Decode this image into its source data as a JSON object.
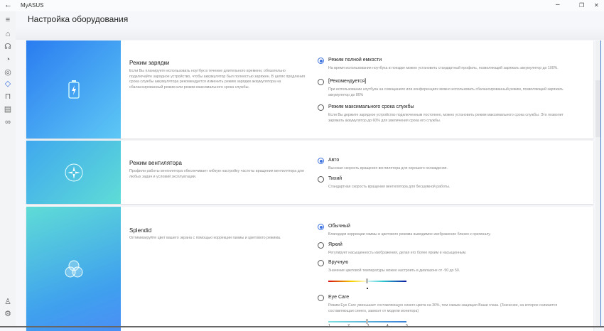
{
  "window": {
    "title": "MyASUS",
    "back_icon": "arrow-left-icon",
    "minimize": "–",
    "restore": "❐",
    "close": "✕"
  },
  "sidebar": {
    "items": [
      "menu-icon",
      "home-icon",
      "support-icon",
      "diagnostics-icon",
      "system-icon",
      "customization-icon",
      "store-icon",
      "news-icon",
      "link-icon"
    ],
    "bottom": [
      "user-icon",
      "gear-icon"
    ],
    "active": "customization-icon"
  },
  "header": {
    "title": "Настройка оборудования"
  },
  "accent": "#3a6fe0",
  "cards": [
    {
      "title": "Режим зарядки",
      "desc": "Если Вы планируете использовать ноутбук в течение длительного времени, обязательно подключайте зарядное устройство, чтобы аккумулятор был полностью заряжен. В целях продления срока службы аккумулятора рекомендуется изменить режим зарядки аккумулятора на сбалансированный режим или режим максимального срока службы.",
      "icon": "battery-charging-icon",
      "options": [
        {
          "label": "Режим полной емкости",
          "desc": "На время использования ноутбука в поездке можно установить стандартный профиль, позволяющий заряжать аккумулятор до 100%.",
          "selected": true
        },
        {
          "label": " [Рекомендуется]",
          "desc": "При использовании ноутбука на совещаниях или конференциях можно использовать сбалансированный режим, позволяющий заряжать аккумулятор до 80%",
          "selected": false
        },
        {
          "label": "Режим максимального срока службы",
          "desc": "Если Вы держите зарядное устройство подключенным постоянно, можно установить режим максимального срока службы. Это позволит заряжать аккумулятор до 60% для увеличения срока его службы.",
          "selected": false
        }
      ]
    },
    {
      "title": "Режим вентилятора",
      "desc": "Профили работы вентилятора обеспечивает гибкую настройку частоты вращения вентилятора для любых задач и условий эксплуатации.",
      "icon": "fan-icon",
      "options": [
        {
          "label": "Авто",
          "desc": "Высокая скорость вращения вентилятора для хорошего охлаждения.",
          "selected": true
        },
        {
          "label": "Тихий",
          "desc": "Стандартная скорость вращения вентилятора для бесшумной работы.",
          "selected": false
        }
      ]
    },
    {
      "title": "Splendid",
      "desc": "Оптимизируйте цвет вашего экрана с помощью коррекции гаммы и цветового режима.",
      "icon": "color-circles-icon",
      "options": [
        {
          "label": "Обычный",
          "desc": "Благодаря коррекции гаммы и цветового режима выводимое изображение близко к оригиналу.",
          "selected": true
        },
        {
          "label": "Яркий",
          "desc": "Регулирует насыщенность изображения, делая его более ярким и насыщенным.",
          "selected": false
        },
        {
          "label": "Вручную",
          "desc": "Значение цветовой температуры можно настроить в диапазоне от -50 до 50.",
          "selected": false,
          "slider_value": 0,
          "slider_range": [
            -50,
            50
          ]
        },
        {
          "label": "Eye Care",
          "desc": "Режим Eye Care уменьшает составляющую синего цвета на 30%, тем самым защищая Ваши глаза. (Значение, на которое снижается составляющая синего, зависит от модели монитора)",
          "selected": false,
          "slider_value": 3,
          "ticks": [
            "1",
            "2",
            "3",
            "4",
            "5"
          ]
        }
      ]
    }
  ]
}
